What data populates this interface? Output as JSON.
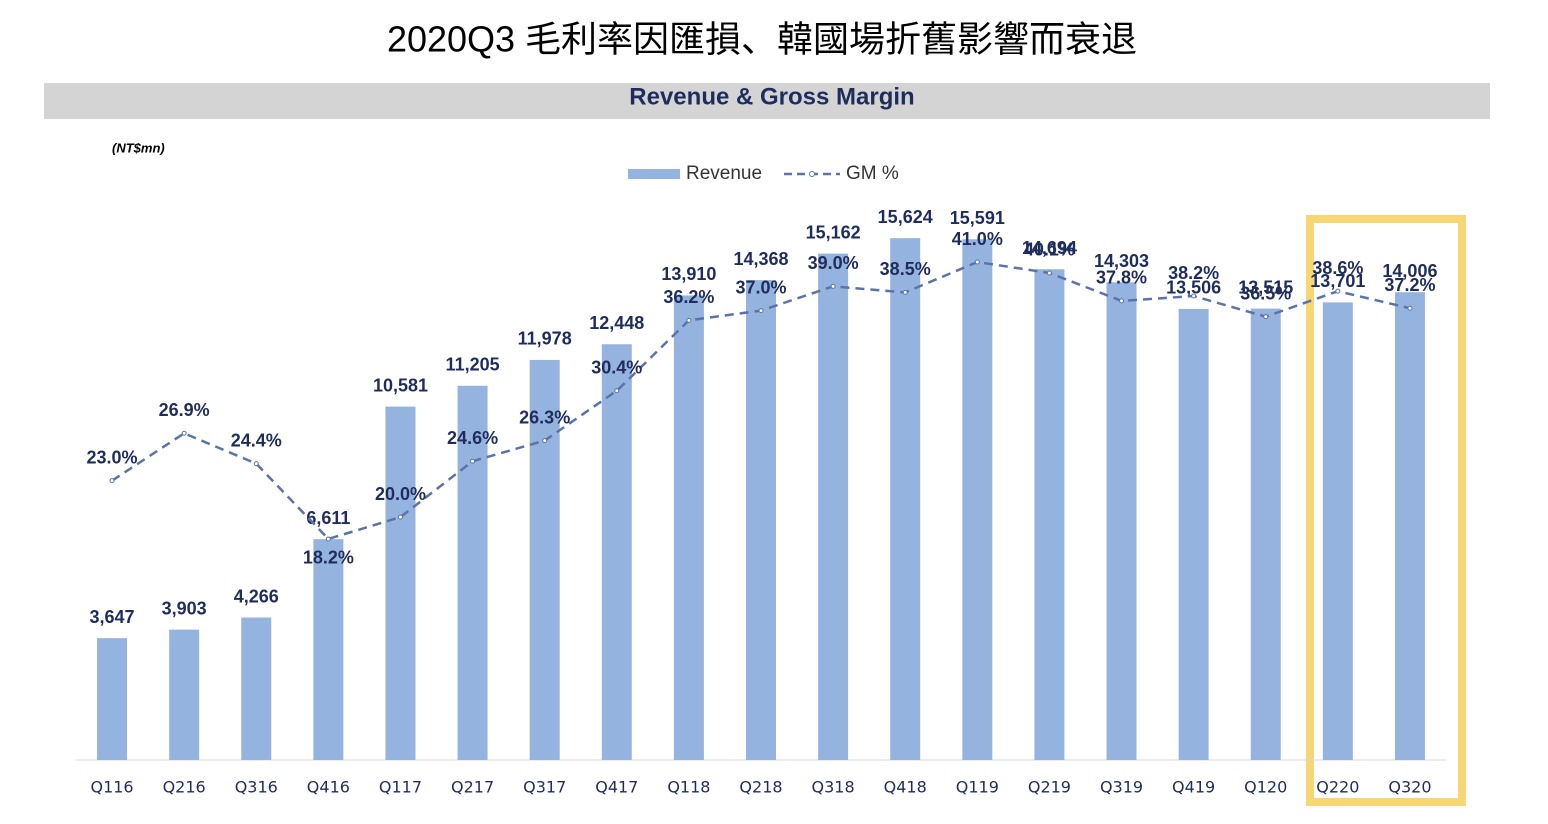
{
  "chart_data": {
    "type": "bar-line",
    "title": "2020Q3 毛利率因匯損、韓國場折舊影響而衰退",
    "subtitle": "Revenue & Gross Margin",
    "unit_label": "(NT$mn)",
    "categories": [
      "Q116",
      "Q216",
      "Q316",
      "Q416",
      "Q117",
      "Q217",
      "Q317",
      "Q417",
      "Q118",
      "Q218",
      "Q318",
      "Q418",
      "Q119",
      "Q219",
      "Q319",
      "Q419",
      "Q120",
      "Q220",
      "Q320"
    ],
    "series": [
      {
        "name": "Revenue",
        "type": "bar",
        "color": "#95b3df",
        "values": [
          3647,
          3903,
          4266,
          6611,
          10581,
          11205,
          11978,
          12448,
          13910,
          14368,
          15162,
          15624,
          15591,
          14694,
          14303,
          13506,
          13515,
          13701,
          14006
        ],
        "value_labels": [
          "3,647",
          "3,903",
          "4,266",
          "6,611",
          "10,581",
          "11,205",
          "11,978",
          "12,448",
          "13,910",
          "14,368",
          "15,162",
          "15,624",
          "15,591",
          "14,694",
          "14,303",
          "13,506",
          "13,515",
          "13,701",
          "14,006"
        ]
      },
      {
        "name": "GM %",
        "type": "line",
        "axis": "y2",
        "color": "#5b73a8",
        "values": [
          23.0,
          26.9,
          24.4,
          18.2,
          20.0,
          24.6,
          26.3,
          30.4,
          36.2,
          37.0,
          39.0,
          38.5,
          41.0,
          40.1,
          37.8,
          38.2,
          36.5,
          38.6,
          37.2
        ],
        "value_labels": [
          "23.0%",
          "26.9%",
          "24.4%",
          "18.2%",
          "20.0%",
          "24.6%",
          "26.3%",
          "30.4%",
          "36.2%",
          "37.0%",
          "39.0%",
          "38.5%",
          "41.0%",
          "40.1%",
          "37.8%",
          "38.2%",
          "36.5%",
          "38.6%",
          "37.2%"
        ]
      }
    ],
    "ylim": [
      0,
      20000
    ],
    "y2lim": [
      0,
      55
    ],
    "legend": "top"
  }
}
